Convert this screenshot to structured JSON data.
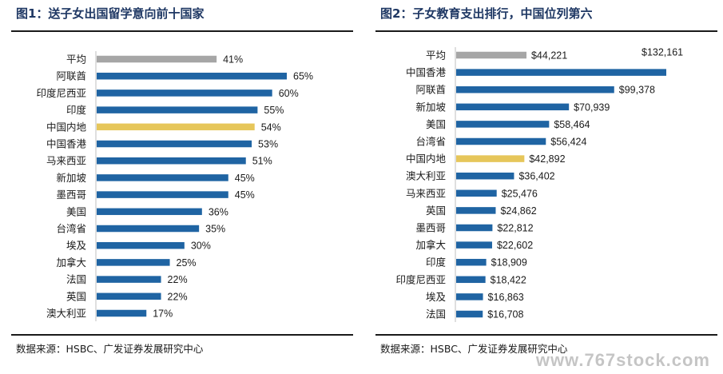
{
  "colors": {
    "bar": "#1f64a3",
    "average": "#a6a6a6",
    "highlight": "#e6c65a",
    "title": "#1f3864"
  },
  "chart_data": [
    {
      "type": "bar",
      "orientation": "horizontal",
      "title": "图1：送子女出国留学意向前十国家",
      "source": "数据来源：HSBC、广发证券发展研究中心",
      "value_format": "percent",
      "categories": [
        "平均",
        "阿联酋",
        "印度尼西亚",
        "印度",
        "中国内地",
        "中国香港",
        "马来西亚",
        "新加坡",
        "墨西哥",
        "美国",
        "台湾省",
        "埃及",
        "加拿大",
        "法国",
        "英国",
        "澳大利亚"
      ],
      "values": [
        41,
        65,
        60,
        55,
        54,
        53,
        51,
        45,
        45,
        36,
        35,
        30,
        25,
        22,
        22,
        17
      ],
      "labels": [
        "41%",
        "65%",
        "60%",
        "55%",
        "54%",
        "53%",
        "51%",
        "45%",
        "45%",
        "36%",
        "35%",
        "30%",
        "25%",
        "22%",
        "22%",
        "17%"
      ],
      "highlight": {
        "平均": "average",
        "中国内地": "highlight"
      },
      "xlim": [
        0,
        70
      ]
    },
    {
      "type": "bar",
      "orientation": "horizontal",
      "title": "图2：子女教育支出排行，中国位列第六",
      "source": "数据来源：HSBC、广发证券发展研究中心",
      "value_format": "usd",
      "categories": [
        "平均",
        "中国香港",
        "阿联酋",
        "新加坡",
        "美国",
        "台湾省",
        "中国内地",
        "澳大利亚",
        "马来西亚",
        "英国",
        "墨西哥",
        "加拿大",
        "印度",
        "印度尼西亚",
        "埃及",
        "法国"
      ],
      "values": [
        44221,
        132161,
        99378,
        70939,
        58464,
        56424,
        42892,
        36402,
        25476,
        24862,
        22812,
        22602,
        18909,
        18422,
        16863,
        16708
      ],
      "labels": [
        "$44,221",
        "$132,161",
        "$99,378",
        "$70,939",
        "$58,464",
        "$56,424",
        "$42,892",
        "$36,402",
        "$25,476",
        "$24,862",
        "$22,812",
        "$22,602",
        "$18,909",
        "$18,422",
        "$16,863",
        "$16,708"
      ],
      "highlight": {
        "平均": "average",
        "中国内地": "highlight"
      },
      "xlim": [
        0,
        133000
      ]
    }
  ],
  "watermark": "www.767stock.com"
}
